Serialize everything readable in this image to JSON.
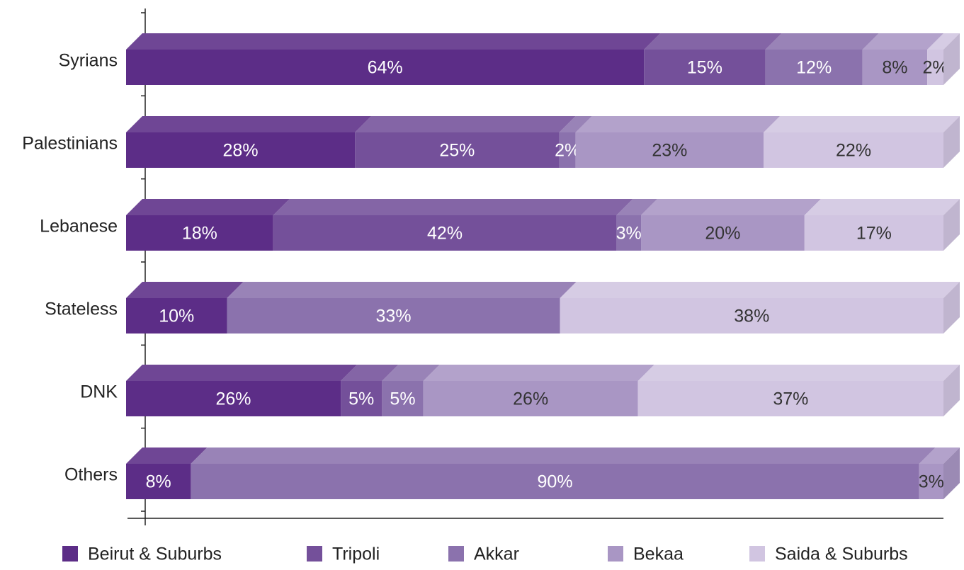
{
  "chart_data": {
    "type": "stacked-bar-3d",
    "categories": [
      "Syrians",
      "Palestinians",
      "Lebanese",
      "Stateless",
      "DNK",
      "Others"
    ],
    "series": [
      {
        "name": "Beirut & Suburbs",
        "color": "#5c2d87",
        "values": [
          64,
          28,
          18,
          10,
          26,
          8
        ],
        "value_labels": [
          "64%",
          "28%",
          "18%",
          "10%",
          "26%",
          "8%"
        ]
      },
      {
        "name": "Tripoli",
        "color": "#74509a",
        "values": [
          15,
          25,
          42,
          null,
          5,
          null
        ],
        "value_labels": [
          "15%",
          "25%",
          "42%",
          null,
          "5%",
          null
        ]
      },
      {
        "name": "Akkar",
        "color": "#8b72ad",
        "values": [
          12,
          2,
          3,
          33,
          5,
          90
        ],
        "value_labels": [
          "12%",
          "2%",
          "3%",
          "33%",
          "5%",
          "90%"
        ]
      },
      {
        "name": "Bekaa",
        "color": "#a996c4",
        "values": [
          8,
          23,
          20,
          null,
          26,
          3
        ],
        "value_labels": [
          "8%",
          "23%",
          "20%",
          null,
          "26%",
          "3%"
        ]
      },
      {
        "name": "Saida & Suburbs",
        "color": "#d1c5e1",
        "values": [
          2,
          22,
          17,
          38,
          37,
          null
        ],
        "value_labels": [
          "2%",
          "22%",
          "17%",
          "38%",
          "37%",
          null
        ]
      }
    ]
  }
}
